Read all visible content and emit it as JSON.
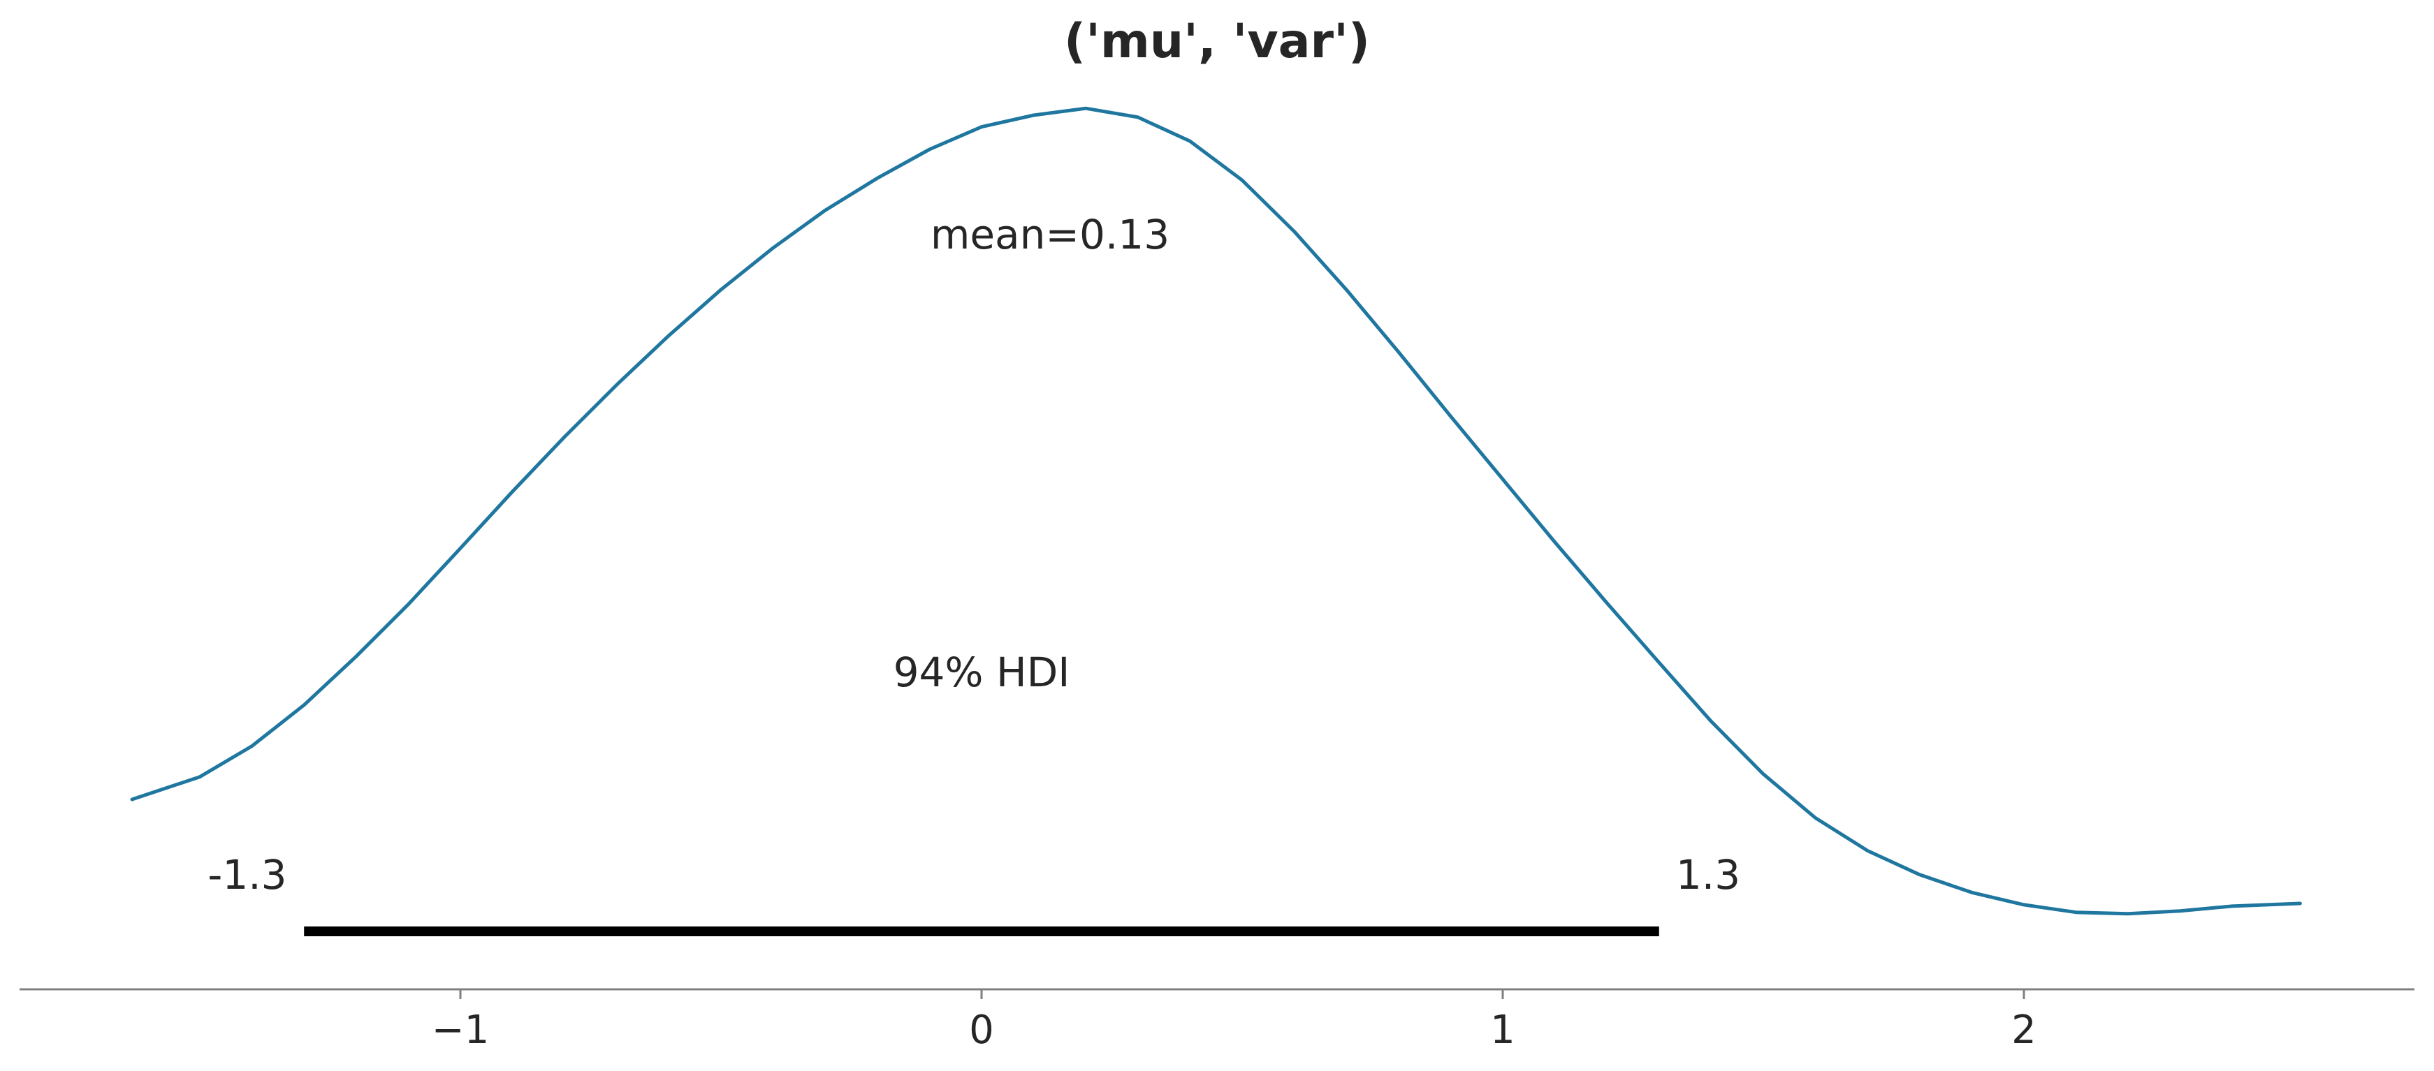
{
  "chart_data": {
    "type": "line",
    "title": "('mu', 'var')",
    "xlabel": "",
    "ylabel": "",
    "xlim": [
      -1.88,
      2.71
    ],
    "x_ticks": [
      -1,
      0,
      1,
      2
    ],
    "x_tick_labels": [
      "−1",
      "0",
      "1",
      "2"
    ],
    "grid": false,
    "series": [
      {
        "color": "#1f77a0",
        "x": [
          -1.63,
          -1.5,
          -1.4,
          -1.3,
          -1.2,
          -1.1,
          -1.0,
          -0.9,
          -0.8,
          -0.7,
          -0.6,
          -0.5,
          -0.4,
          -0.3,
          -0.2,
          -0.1,
          0.0,
          0.1,
          0.2,
          0.3,
          0.4,
          0.5,
          0.6,
          0.7,
          0.8,
          0.9,
          1.0,
          1.1,
          1.2,
          1.3,
          1.4,
          1.5,
          1.6,
          1.7,
          1.8,
          1.9,
          2.0,
          2.1,
          2.2,
          2.3,
          2.4,
          2.53
        ],
        "y": [
          0.0,
          0.033,
          0.078,
          0.138,
          0.209,
          0.285,
          0.367,
          0.45,
          0.53,
          0.606,
          0.678,
          0.745,
          0.806,
          0.861,
          0.908,
          0.95,
          0.983,
          1.0,
          1.01,
          0.997,
          0.962,
          0.905,
          0.83,
          0.745,
          0.654,
          0.56,
          0.468,
          0.376,
          0.287,
          0.2,
          0.114,
          0.037,
          -0.027,
          -0.075,
          -0.11,
          -0.136,
          -0.154,
          -0.165,
          -0.167,
          -0.163,
          -0.156,
          -0.152
        ]
      }
    ],
    "annotations": {
      "mean": "mean=0.13",
      "hdi": "94% HDI",
      "hdi_low_label": "-1.3",
      "hdi_high_label": "1.3"
    },
    "hdi_interval": [
      -1.3,
      1.3
    ]
  }
}
